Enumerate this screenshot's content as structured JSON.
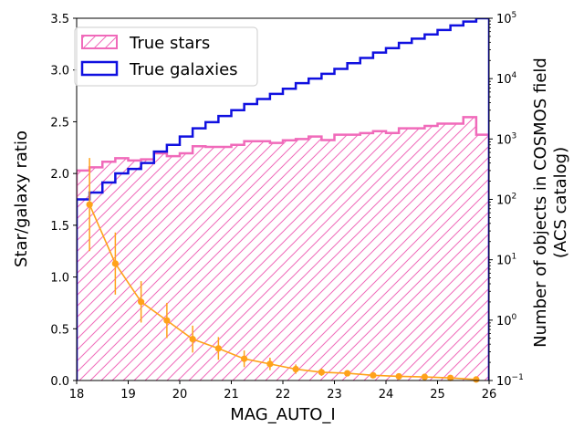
{
  "chart_data": {
    "type": "histogram+line",
    "xlabel": "MAG_AUTO_I",
    "ylabel_left": "Star/galaxy ratio",
    "ylabel_right_line1": "Number of objects in COSMOS field",
    "ylabel_right_line2": "(ACS catalog)",
    "xlim": [
      18,
      26
    ],
    "ylim_left": [
      0,
      3.5
    ],
    "ylim_right_log": [
      0.1,
      100000
    ],
    "x_ticks": [
      "18",
      "19",
      "20",
      "21",
      "22",
      "23",
      "24",
      "25",
      "26"
    ],
    "y_left_ticks": [
      "0.0",
      "0.5",
      "1.0",
      "1.5",
      "2.0",
      "2.5",
      "3.0",
      "3.5"
    ],
    "y_right_ticks": [
      {
        "base": "10",
        "exp": "−1"
      },
      {
        "base": "10",
        "exp": "0"
      },
      {
        "base": "10",
        "exp": "1"
      },
      {
        "base": "10",
        "exp": "2"
      },
      {
        "base": "10",
        "exp": "3"
      },
      {
        "base": "10",
        "exp": "4"
      },
      {
        "base": "10",
        "exp": "5"
      }
    ],
    "legend": [
      "True stars",
      "True galaxies"
    ],
    "colors": {
      "stars": "#f06aba",
      "galaxies": "#1010e0",
      "ratio": "#ffa21a"
    },
    "bin_edges": [
      18.0,
      18.25,
      18.5,
      18.75,
      19.0,
      19.25,
      19.5,
      19.75,
      20.0,
      20.25,
      20.5,
      20.75,
      21.0,
      21.25,
      21.5,
      21.75,
      22.0,
      22.25,
      22.5,
      22.75,
      23.0,
      23.25,
      23.5,
      23.75,
      24.0,
      24.25,
      24.5,
      24.75,
      25.0,
      25.25,
      25.5,
      25.75,
      26.0
    ],
    "stars_counts": [
      300,
      340,
      420,
      480,
      440,
      460,
      580,
      520,
      580,
      760,
      740,
      740,
      800,
      920,
      920,
      860,
      950,
      1000,
      1100,
      960,
      1180,
      1180,
      1250,
      1350,
      1260,
      1500,
      1500,
      1650,
      1800,
      1800,
      2300,
      1180
    ],
    "galaxies_counts": [
      100,
      130,
      190,
      270,
      320,
      400,
      620,
      800,
      1100,
      1500,
      1900,
      2400,
      3000,
      3800,
      4600,
      5600,
      6800,
      8400,
      10000,
      12000,
      14500,
      18000,
      22000,
      27000,
      32000,
      39000,
      46000,
      54000,
      64000,
      76000,
      88000,
      100000
    ],
    "ratio_x": [
      18.25,
      18.75,
      19.25,
      19.75,
      20.25,
      20.75,
      21.25,
      21.75,
      22.25,
      22.75,
      23.25,
      23.75,
      24.25,
      24.75,
      25.25,
      25.75
    ],
    "ratio_y": [
      1.7,
      1.13,
      0.76,
      0.58,
      0.4,
      0.31,
      0.21,
      0.16,
      0.11,
      0.08,
      0.07,
      0.05,
      0.04,
      0.035,
      0.025,
      0.01
    ],
    "ratio_err": [
      0.45,
      0.3,
      0.2,
      0.17,
      0.13,
      0.11,
      0.08,
      0.06,
      0.045,
      0.035,
      0.02,
      0.015,
      0.01,
      0.01,
      0.01,
      0.005
    ]
  }
}
